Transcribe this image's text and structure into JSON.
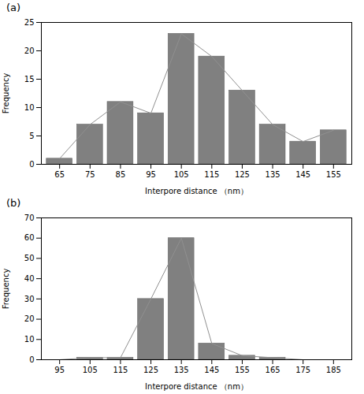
{
  "chart_data": [
    {
      "type": "bar",
      "title": "(a)",
      "x": [
        65,
        75,
        85,
        95,
        105,
        115,
        125,
        135,
        145,
        155
      ],
      "series": [
        {
          "type": "bar",
          "color": "#808080",
          "values": [
            1,
            7,
            11,
            9,
            23,
            19,
            13,
            7,
            4,
            6
          ]
        },
        {
          "type": "line",
          "color": "#909090",
          "values": [
            1,
            7,
            11,
            9,
            23,
            19,
            13,
            7,
            4,
            6
          ]
        }
      ],
      "xlabel": "Interpore distance （nm）",
      "ylabel": "Frequency",
      "xlim": [
        59,
        161
      ],
      "xticks": [
        65,
        75,
        85,
        95,
        105,
        115,
        125,
        135,
        145,
        155
      ],
      "ylim": [
        0,
        25
      ],
      "yticks": [
        0,
        5,
        10,
        15,
        20,
        25
      ]
    },
    {
      "type": "bar",
      "title": "(b)",
      "x": [
        95,
        105,
        115,
        125,
        135,
        145,
        155,
        165,
        175,
        185
      ],
      "series": [
        {
          "type": "bar",
          "color": "#808080",
          "values": [
            0,
            1,
            1,
            30,
            60,
            8,
            2,
            1,
            0,
            0
          ]
        },
        {
          "type": "line",
          "color": "#909090",
          "values": [
            0,
            1,
            1,
            30,
            60,
            8,
            2,
            1,
            0,
            0
          ]
        }
      ],
      "xlabel": "Interpore distance （nm）",
      "ylabel": "Frequency",
      "xlim": [
        89,
        191
      ],
      "xticks": [
        95,
        105,
        115,
        125,
        135,
        145,
        155,
        165,
        175,
        185
      ],
      "ylim": [
        0,
        70
      ],
      "yticks": [
        0,
        10,
        20,
        30,
        40,
        50,
        60,
        70
      ]
    }
  ]
}
